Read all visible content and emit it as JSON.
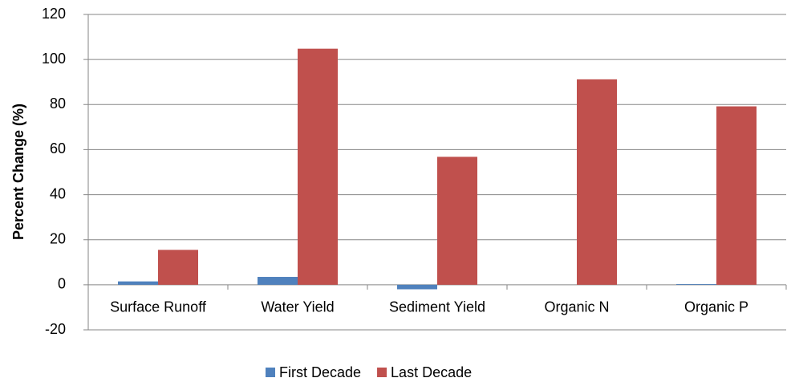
{
  "chart_data": {
    "type": "bar",
    "y_label": "Percent Change (%)",
    "categories": [
      "Surface Runoff",
      "Water Yield",
      "Sediment Yield",
      "Organic N",
      "Organic P"
    ],
    "series": [
      {
        "name": "First Decade",
        "color": "#4f81bd",
        "values": [
          1.5,
          3.5,
          -2,
          0,
          0.3
        ]
      },
      {
        "name": "Last Decade",
        "color": "#c0504d",
        "values": [
          15.5,
          104.8,
          56.8,
          91.2,
          79.2
        ]
      }
    ],
    "ylim": [
      -20,
      120
    ],
    "yticks": [
      -20,
      0,
      20,
      40,
      60,
      80,
      100,
      120
    ],
    "grid": true,
    "legend": "bottom"
  }
}
